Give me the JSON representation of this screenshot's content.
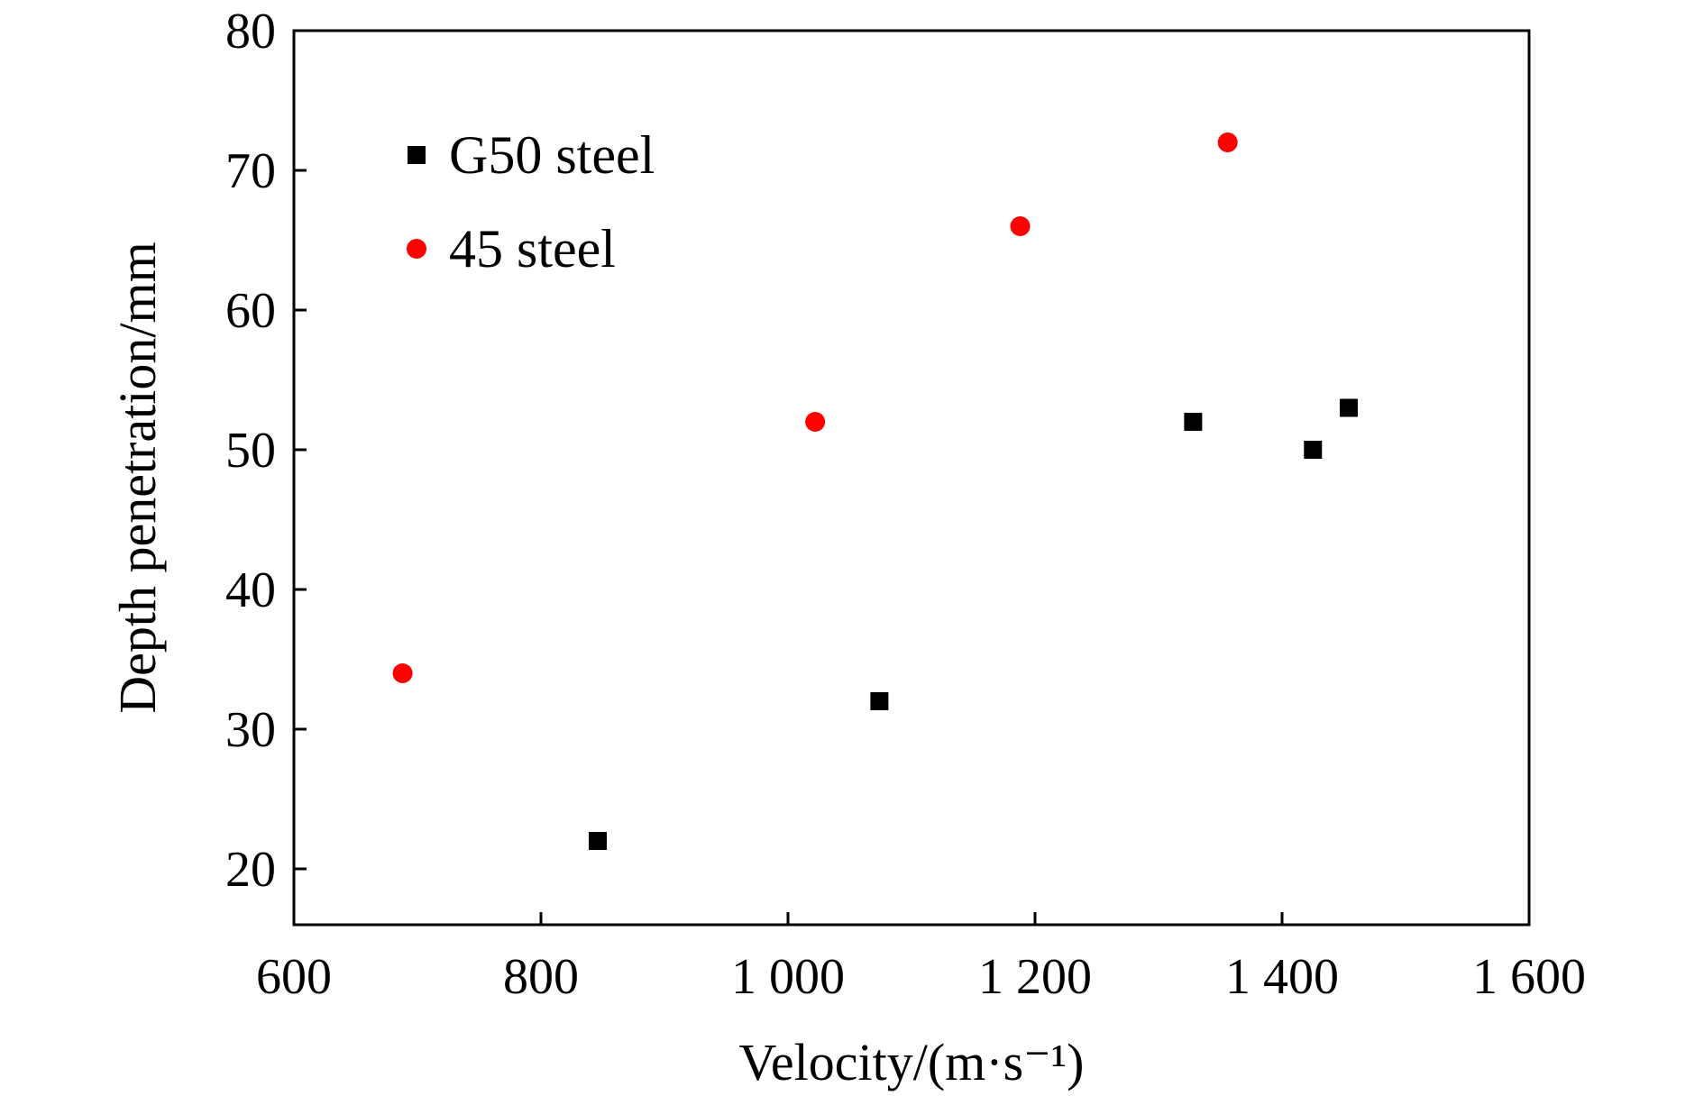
{
  "chart_data": {
    "type": "scatter",
    "title": "",
    "xlabel": "Velocity/(m·s⁻¹)",
    "ylabel": "Depth penetration/mm",
    "xlim": [
      600,
      1600
    ],
    "ylim": [
      16,
      80
    ],
    "x_ticks": [
      600,
      800,
      1000,
      1200,
      1400,
      1600
    ],
    "x_tick_labels": [
      "600",
      "800",
      "1 000",
      "1 200",
      "1 400",
      "1 600"
    ],
    "y_ticks": [
      20,
      30,
      40,
      50,
      60,
      70,
      80
    ],
    "y_tick_labels": [
      "20",
      "30",
      "40",
      "50",
      "60",
      "70",
      "80"
    ],
    "grid": false,
    "legend_position": "top-left",
    "series": [
      {
        "name": "G50 steel",
        "marker": "square",
        "color": "#000000",
        "points": [
          {
            "x": 846,
            "y": 22
          },
          {
            "x": 1074,
            "y": 32
          },
          {
            "x": 1328,
            "y": 52
          },
          {
            "x": 1425,
            "y": 50
          },
          {
            "x": 1454,
            "y": 53
          }
        ]
      },
      {
        "name": "45 steel",
        "marker": "circle",
        "color": "#ff0000",
        "points": [
          {
            "x": 688,
            "y": 34
          },
          {
            "x": 1022,
            "y": 52
          },
          {
            "x": 1188,
            "y": 66
          },
          {
            "x": 1356,
            "y": 72
          }
        ]
      }
    ]
  }
}
